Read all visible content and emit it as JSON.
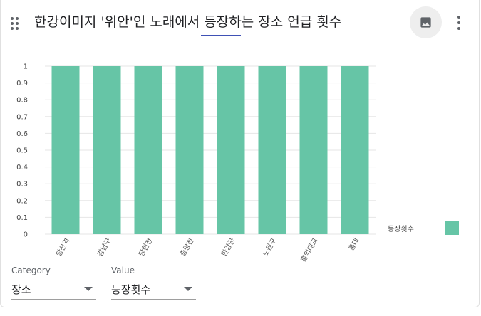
{
  "header": {
    "title": "한강이미지 '위안'인 노래에서 등장하는 장소 언급 횟수"
  },
  "icons": {
    "drag": "drag-handle-icon",
    "image": "image-icon",
    "more": "more-vert-icon"
  },
  "controls": {
    "category": {
      "label": "Category",
      "value": "장소"
    },
    "value": {
      "label": "Value",
      "value": "등장횟수"
    }
  },
  "chart_data": {
    "type": "bar",
    "categories": [
      "당산역",
      "강남구",
      "당현천",
      "중랑천",
      "한강공",
      "노원구",
      "홍익대교",
      "홍대"
    ],
    "series": [
      {
        "name": "등장횟수",
        "values": [
          1,
          1,
          1,
          1,
          1,
          1,
          1,
          1
        ],
        "color": "#66c5a6"
      }
    ],
    "ylim": [
      0,
      1
    ],
    "yticks": [
      "0",
      "0.1",
      "0.2",
      "0.3",
      "0.4",
      "0.5",
      "0.6",
      "0.7",
      "0.8",
      "0.9",
      "1"
    ],
    "grid": true,
    "legend": "right"
  }
}
